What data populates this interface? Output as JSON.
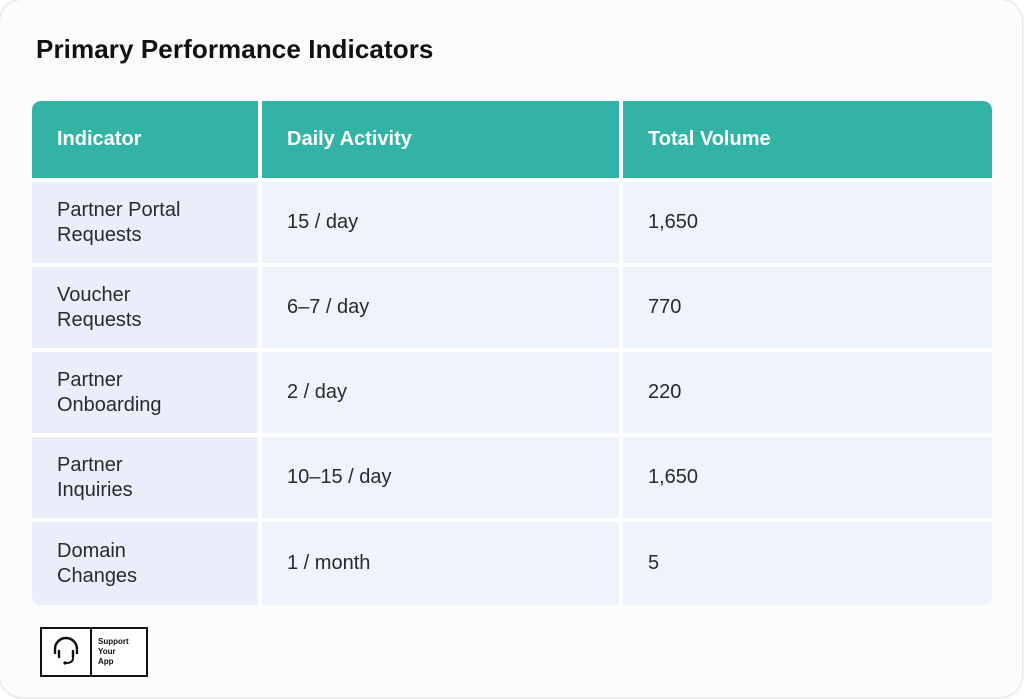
{
  "title": "Primary Performance Indicators",
  "table": {
    "headers": [
      "Indicator",
      "Daily Activity",
      "Total Volume"
    ],
    "rows": [
      {
        "indicator": [
          "Partner Portal",
          "Requests"
        ],
        "daily": "15 / day",
        "total": "1,650"
      },
      {
        "indicator": [
          "Voucher",
          "Requests"
        ],
        "daily": "6–7 / day",
        "total": "770"
      },
      {
        "indicator": [
          "Partner",
          "Onboarding"
        ],
        "daily": "2 / day",
        "total": "220"
      },
      {
        "indicator": [
          "Partner",
          "Inquiries"
        ],
        "daily": "10–15 / day",
        "total": "1,650"
      },
      {
        "indicator": [
          "Domain",
          "Changes"
        ],
        "daily": "1 / month",
        "total": "5"
      }
    ]
  },
  "logo": {
    "icon": "headset-icon",
    "lines": [
      "Support",
      "Your",
      "App"
    ]
  },
  "colors": {
    "header_bg": "#33b3a6",
    "cell_bg": "#eff3fb",
    "text": "#2a2a2a"
  }
}
